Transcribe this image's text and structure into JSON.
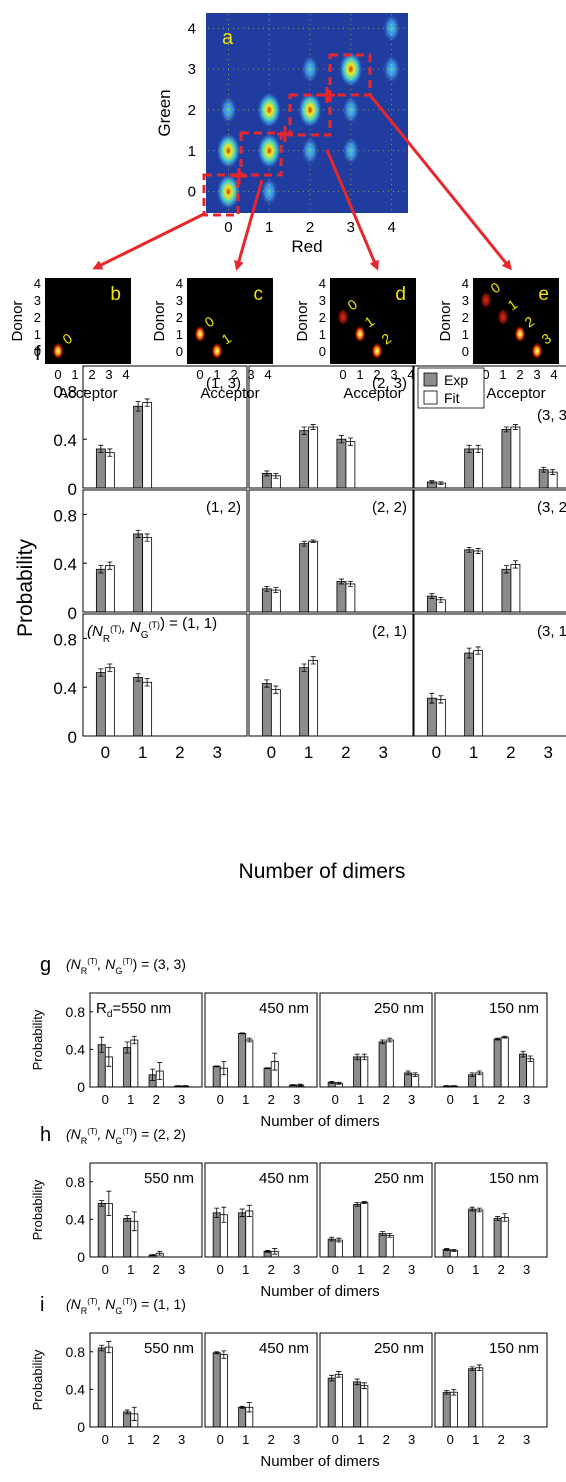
{
  "panel_a": {
    "letter": "a",
    "xlabel": "Red",
    "ylabel": "Green",
    "xticks": [
      "0",
      "1",
      "2",
      "3",
      "4"
    ],
    "yticks": [
      "0",
      "1",
      "2",
      "3",
      "4"
    ],
    "colors": {
      "background": "#1f3c9e",
      "arrow": "#e8272c"
    }
  },
  "small_maps": {
    "xlabel": "Acceptor",
    "ylabel": "Donor",
    "xticks": [
      "0",
      "1",
      "2",
      "3",
      "4"
    ],
    "yticks": [
      "0",
      "1",
      "2",
      "3",
      "4"
    ],
    "panels": [
      {
        "letter": "b",
        "labels": [
          "0"
        ]
      },
      {
        "letter": "c",
        "labels": [
          "0",
          "1"
        ]
      },
      {
        "letter": "d",
        "labels": [
          "0",
          "1",
          "2"
        ]
      },
      {
        "letter": "e",
        "labels": [
          "0",
          "1",
          "2",
          "3"
        ]
      }
    ]
  },
  "colors": {
    "exp": "#8c8c8c",
    "fit": "#ffffff",
    "label_yellow": "#f2e600"
  },
  "chart_data": [
    {
      "panel": "f",
      "type": "bar",
      "ylabel": "Probability",
      "xlabel": "Number of dimers",
      "categories": [
        "0",
        "1",
        "2",
        "3"
      ],
      "ylim": [
        0,
        1
      ],
      "yticks": [
        "0",
        "0.4",
        "0.8"
      ],
      "legend": {
        "placement": "top-right",
        "items": [
          "Exp",
          "Fit"
        ]
      },
      "first_label_prefix": "(N",
      "grid": [
        [
          {
            "label": "(1, 3)",
            "exp": [
              0.32,
              0.67,
              null,
              null
            ],
            "exp_err": [
              0.03,
              0.04,
              null,
              null
            ],
            "fit": [
              0.29,
              0.7,
              null,
              null
            ],
            "fit_err": [
              0.03,
              0.03,
              null,
              null
            ]
          },
          {
            "label": "(2, 3)",
            "exp": [
              0.12,
              0.47,
              0.4,
              null
            ],
            "exp_err": [
              0.02,
              0.03,
              0.03,
              null
            ],
            "fit": [
              0.1,
              0.5,
              0.38,
              null
            ],
            "fit_err": [
              0.02,
              0.02,
              0.03,
              null
            ]
          },
          {
            "label": "(3, 3)",
            "exp": [
              0.05,
              0.32,
              0.48,
              0.15
            ],
            "exp_err": [
              0.01,
              0.03,
              0.02,
              0.02
            ],
            "fit": [
              0.04,
              0.32,
              0.5,
              0.13
            ],
            "fit_err": [
              0.01,
              0.03,
              0.02,
              0.02
            ]
          }
        ],
        [
          {
            "label": "(1, 2)",
            "exp": [
              0.35,
              0.64,
              null,
              null
            ],
            "exp_err": [
              0.03,
              0.03,
              null,
              null
            ],
            "fit": [
              0.38,
              0.61,
              null,
              null
            ],
            "fit_err": [
              0.03,
              0.03,
              null,
              null
            ]
          },
          {
            "label": "(2, 2)",
            "exp": [
              0.19,
              0.56,
              0.25,
              null
            ],
            "exp_err": [
              0.02,
              0.02,
              0.02,
              null
            ],
            "fit": [
              0.18,
              0.58,
              0.23,
              null
            ],
            "fit_err": [
              0.02,
              0.01,
              0.02,
              null
            ]
          },
          {
            "label": "(3, 2)",
            "exp": [
              0.13,
              0.51,
              0.35,
              null
            ],
            "exp_err": [
              0.02,
              0.02,
              0.03,
              null
            ],
            "fit": [
              0.1,
              0.5,
              0.39,
              null
            ],
            "fit_err": [
              0.02,
              0.02,
              0.03,
              null
            ]
          }
        ],
        [
          {
            "label": "(1, 1)",
            "exp": [
              0.52,
              0.48,
              null,
              null
            ],
            "exp_err": [
              0.03,
              0.03,
              null,
              null
            ],
            "fit": [
              0.56,
              0.44,
              null,
              null
            ],
            "fit_err": [
              0.03,
              0.03,
              null,
              null
            ]
          },
          {
            "label": "(2, 1)",
            "exp": [
              0.43,
              0.56,
              null,
              null
            ],
            "exp_err": [
              0.03,
              0.03,
              null,
              null
            ],
            "fit": [
              0.38,
              0.62,
              null,
              null
            ],
            "fit_err": [
              0.03,
              0.03,
              null,
              null
            ]
          },
          {
            "label": "(3, 1)",
            "exp": [
              0.31,
              0.68,
              null,
              null
            ],
            "exp_err": [
              0.04,
              0.04,
              null,
              null
            ],
            "fit": [
              0.3,
              0.7,
              null,
              null
            ],
            "fit_err": [
              0.03,
              0.03,
              null,
              null
            ]
          }
        ]
      ]
    },
    {
      "panel": "g",
      "type": "bar",
      "header": "(3, 3)",
      "ylabel": "Probability",
      "xlabel": "Number of dimers",
      "categories": [
        "0",
        "1",
        "2",
        "3"
      ],
      "ylim": [
        0,
        1
      ],
      "yticks": [
        "0",
        "0.4",
        "0.8"
      ],
      "first_prefix": "R",
      "first_prefix_sub": "d",
      "subplots": [
        {
          "label": "=550 nm",
          "exp": [
            0.45,
            0.42,
            0.13,
            0.01
          ],
          "exp_err": [
            0.08,
            0.06,
            0.06,
            0.005
          ],
          "fit": [
            0.32,
            0.5,
            0.17,
            0.01
          ],
          "fit_err": [
            0.1,
            0.04,
            0.09,
            0.005
          ]
        },
        {
          "label": "450 nm",
          "exp": [
            0.22,
            0.57,
            0.2,
            0.02
          ],
          "exp_err": [
            0.005,
            0.005,
            0.005,
            0.005
          ],
          "fit": [
            0.2,
            0.5,
            0.27,
            0.02
          ],
          "fit_err": [
            0.07,
            0.02,
            0.09,
            0.01
          ]
        },
        {
          "label": "250 nm",
          "exp": [
            0.05,
            0.32,
            0.48,
            0.15
          ],
          "exp_err": [
            0.01,
            0.03,
            0.02,
            0.02
          ],
          "fit": [
            0.04,
            0.32,
            0.5,
            0.13
          ],
          "fit_err": [
            0.01,
            0.03,
            0.02,
            0.02
          ]
        },
        {
          "label": "150 nm",
          "exp": [
            0.01,
            0.13,
            0.51,
            0.35
          ],
          "exp_err": [
            0.005,
            0.02,
            0.01,
            0.03
          ],
          "fit": [
            0.01,
            0.15,
            0.53,
            0.3
          ],
          "fit_err": [
            0.005,
            0.02,
            0.01,
            0.03
          ]
        }
      ]
    },
    {
      "panel": "h",
      "type": "bar",
      "header": "(2, 2)",
      "ylabel": "Probability",
      "xlabel": "Number of dimers",
      "categories": [
        "0",
        "1",
        "2",
        "3"
      ],
      "ylim": [
        0,
        1
      ],
      "yticks": [
        "0",
        "0.4",
        "0.8"
      ],
      "subplots": [
        {
          "label": "550 nm",
          "exp": [
            0.57,
            0.41,
            0.02,
            null
          ],
          "exp_err": [
            0.03,
            0.03,
            0.005,
            null
          ],
          "fit": [
            0.57,
            0.38,
            0.04,
            null
          ],
          "fit_err": [
            0.13,
            0.1,
            0.02,
            null
          ]
        },
        {
          "label": "450 nm",
          "exp": [
            0.47,
            0.47,
            0.06,
            null
          ],
          "exp_err": [
            0.05,
            0.04,
            0.01,
            null
          ],
          "fit": [
            0.45,
            0.49,
            0.06,
            null
          ],
          "fit_err": [
            0.08,
            0.06,
            0.03,
            null
          ]
        },
        {
          "label": "250 nm",
          "exp": [
            0.19,
            0.56,
            0.25,
            null
          ],
          "exp_err": [
            0.02,
            0.02,
            0.02,
            null
          ],
          "fit": [
            0.18,
            0.58,
            0.23,
            null
          ],
          "fit_err": [
            0.02,
            0.01,
            0.02,
            null
          ]
        },
        {
          "label": "150 nm",
          "exp": [
            0.08,
            0.51,
            0.41,
            null
          ],
          "exp_err": [
            0.01,
            0.02,
            0.02,
            null
          ],
          "fit": [
            0.07,
            0.5,
            0.42,
            null
          ],
          "fit_err": [
            0.01,
            0.02,
            0.04,
            null
          ]
        }
      ]
    },
    {
      "panel": "i",
      "type": "bar",
      "header": "(1, 1)",
      "ylabel": "Probability",
      "xlabel": "Number of dimers",
      "categories": [
        "0",
        "1",
        "2",
        "3"
      ],
      "ylim": [
        0,
        1
      ],
      "yticks": [
        "0",
        "0.4",
        "0.8"
      ],
      "subplots": [
        {
          "label": "550 nm",
          "exp": [
            0.84,
            0.16,
            null,
            null
          ],
          "exp_err": [
            0.03,
            0.02,
            null,
            null
          ],
          "fit": [
            0.85,
            0.14,
            null,
            null
          ],
          "fit_err": [
            0.06,
            0.07,
            null,
            null
          ]
        },
        {
          "label": "450 nm",
          "exp": [
            0.79,
            0.21,
            null,
            null
          ],
          "exp_err": [
            0.01,
            0.01,
            null,
            null
          ],
          "fit": [
            0.77,
            0.21,
            null,
            null
          ],
          "fit_err": [
            0.04,
            0.05,
            null,
            null
          ]
        },
        {
          "label": "250 nm",
          "exp": [
            0.52,
            0.48,
            null,
            null
          ],
          "exp_err": [
            0.03,
            0.03,
            null,
            null
          ],
          "fit": [
            0.56,
            0.44,
            null,
            null
          ],
          "fit_err": [
            0.03,
            0.03,
            null,
            null
          ]
        },
        {
          "label": "150 nm",
          "exp": [
            0.37,
            0.62,
            null,
            null
          ],
          "exp_err": [
            0.02,
            0.02,
            null,
            null
          ],
          "fit": [
            0.37,
            0.63,
            null,
            null
          ],
          "fit_err": [
            0.03,
            0.03,
            null,
            null
          ]
        }
      ]
    }
  ]
}
